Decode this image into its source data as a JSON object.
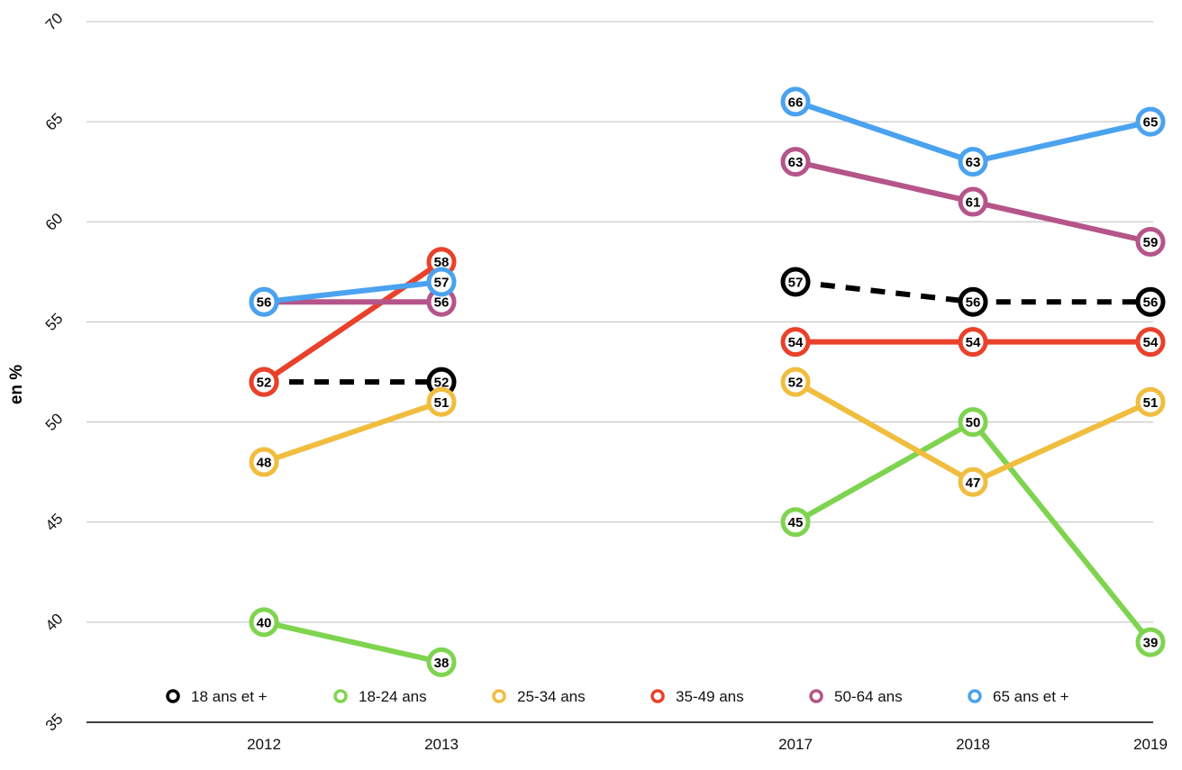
{
  "chart_data": {
    "type": "line",
    "ylabel": "en %",
    "xlabel": "",
    "ylim": [
      35,
      70
    ],
    "y_ticks": [
      "70",
      "65",
      "60",
      "55",
      "50",
      "45",
      "40",
      "35"
    ],
    "categories": [
      "2012",
      "2013",
      "2017",
      "2018",
      "2019"
    ],
    "grid": true,
    "legend_position": "bottom",
    "series": [
      {
        "name": "18 ans et +",
        "color": "#000000",
        "dashed": true,
        "values": [
          52,
          52,
          57,
          56,
          56
        ]
      },
      {
        "name": "18-24 ans",
        "color": "#7ed44f",
        "dashed": false,
        "values": [
          40,
          38,
          45,
          50,
          39
        ]
      },
      {
        "name": "25-34 ans",
        "color": "#f0bd3f",
        "dashed": false,
        "values": [
          48,
          51,
          52,
          47,
          51
        ]
      },
      {
        "name": "35-49 ans",
        "color": "#e9412a",
        "dashed": false,
        "values": [
          52,
          58,
          54,
          54,
          54
        ]
      },
      {
        "name": "50-64 ans",
        "color": "#b5558a",
        "dashed": false,
        "values": [
          56,
          56,
          63,
          61,
          59
        ]
      },
      {
        "name": "65 ans et +",
        "color": "#4ba2ef",
        "dashed": false,
        "values": [
          56,
          57,
          66,
          63,
          65
        ]
      }
    ]
  }
}
